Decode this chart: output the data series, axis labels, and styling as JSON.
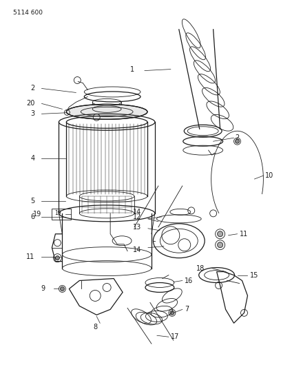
{
  "title": "5114 600",
  "bg_color": "#ffffff",
  "line_color": "#1a1a1a",
  "figsize": [
    4.08,
    5.33
  ],
  "dpi": 100
}
